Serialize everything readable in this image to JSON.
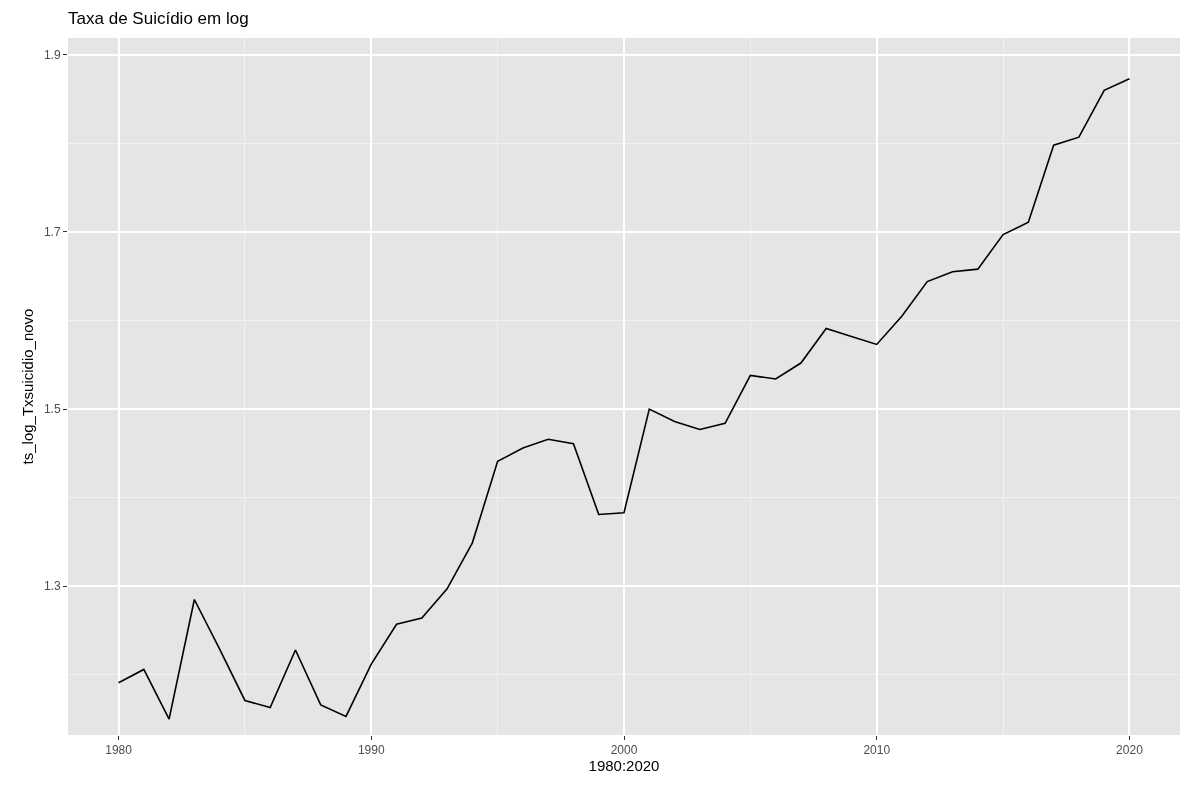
{
  "chart_data": {
    "type": "line",
    "title": "Taxa de Suicídio em log",
    "xlabel": "1980:2020",
    "ylabel": "ts_log_Txsuicidio_novo",
    "x": [
      1980,
      1981,
      1982,
      1983,
      1984,
      1985,
      1986,
      1987,
      1988,
      1989,
      1990,
      1991,
      1992,
      1993,
      1994,
      1995,
      1996,
      1997,
      1998,
      1999,
      2000,
      2001,
      2002,
      2003,
      2004,
      2005,
      2006,
      2007,
      2008,
      2009,
      2010,
      2011,
      2012,
      2013,
      2014,
      2015,
      2016,
      2017,
      2018,
      2019,
      2020
    ],
    "series": [
      {
        "color": "#000000",
        "values": [
          1.191,
          1.206,
          1.15,
          1.285,
          1.229,
          1.171,
          1.163,
          1.228,
          1.166,
          1.153,
          1.212,
          1.257,
          1.264,
          1.297,
          1.349,
          1.441,
          1.456,
          1.466,
          1.461,
          1.381,
          1.383,
          1.5,
          1.486,
          1.477,
          1.484,
          1.538,
          1.534,
          1.552,
          1.591,
          1.582,
          1.573,
          1.605,
          1.644,
          1.655,
          1.658,
          1.697,
          1.711,
          1.798,
          1.807,
          1.86,
          1.873
        ]
      }
    ],
    "xlim": [
      1978,
      2022
    ],
    "xticks": [
      1980,
      1990,
      2000,
      2010,
      2020
    ],
    "ylim": [
      1.132,
      1.919
    ],
    "yticks": [
      1.3,
      1.5,
      1.7,
      1.9
    ],
    "grid": true,
    "marker": "none",
    "line_style": "solid"
  }
}
